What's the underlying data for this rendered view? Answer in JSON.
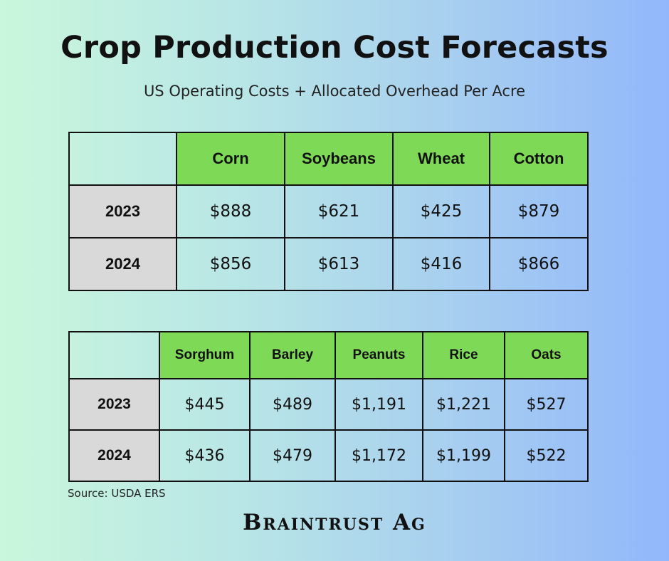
{
  "title": "Crop Production Cost Forecasts",
  "subtitle": "US Operating Costs + Allocated Overhead Per Acre",
  "table1": {
    "crops": [
      "Corn",
      "Soybeans",
      "Wheat",
      "Cotton"
    ],
    "rows": [
      {
        "year": "2023",
        "values": [
          "$888",
          "$621",
          "$425",
          "$879"
        ]
      },
      {
        "year": "2024",
        "values": [
          "$856",
          "$613",
          "$416",
          "$866"
        ]
      }
    ]
  },
  "table2": {
    "crops": [
      "Sorghum",
      "Barley",
      "Peanuts",
      "Rice",
      "Oats"
    ],
    "rows": [
      {
        "year": "2023",
        "values": [
          "$445",
          "$489",
          "$1,191",
          "$1,221",
          "$527"
        ]
      },
      {
        "year": "2024",
        "values": [
          "$436",
          "$479",
          "$1,172",
          "$1,199",
          "$522"
        ]
      }
    ]
  },
  "source": "Source: USDA ERS",
  "brand": "Braintrust Ag",
  "colors": {
    "header_green": "#7ed957",
    "year_gray": "#d9d9d9",
    "border": "#111111",
    "bg_left": "#c9f7dc",
    "bg_right": "#92b7fb"
  }
}
